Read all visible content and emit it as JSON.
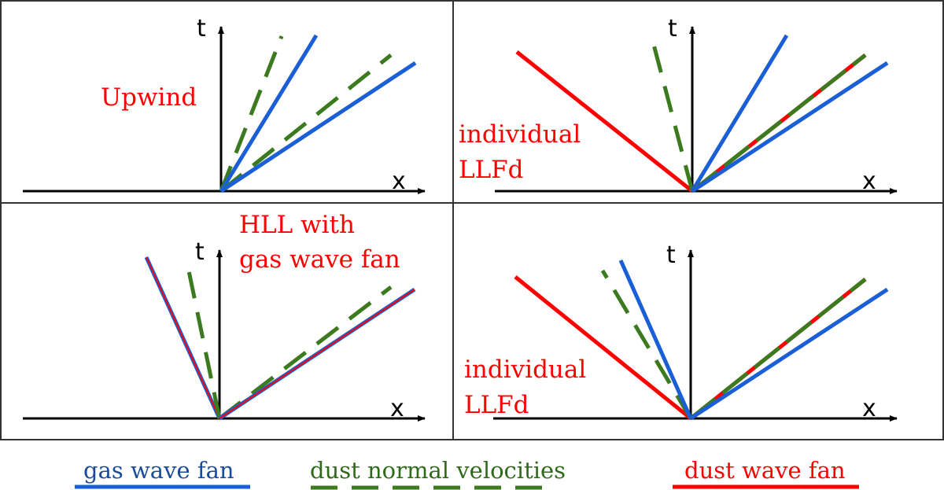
{
  "panels": [
    {
      "id": "top-left",
      "label_lines": [
        "Upwind"
      ],
      "x_axis": "x",
      "t_axis": "t"
    },
    {
      "id": "top-right",
      "label_lines": [
        "individual",
        "LLFd"
      ],
      "x_axis": "x",
      "t_axis": "t"
    },
    {
      "id": "bottom-left",
      "label_lines": [
        "HLL with",
        "gas wave fan"
      ],
      "x_axis": "x",
      "t_axis": "t"
    },
    {
      "id": "bottom-right",
      "label_lines": [
        "individual",
        "LLFd"
      ],
      "x_axis": "x",
      "t_axis": "t"
    }
  ],
  "legend": {
    "gas": "gas wave fan",
    "velocities": "dust normal velocities",
    "dust": "dust wave fan"
  },
  "colors": {
    "gas": "#1a5fd6",
    "velocities": "#3b7a1f",
    "dust": "#ff0000"
  }
}
